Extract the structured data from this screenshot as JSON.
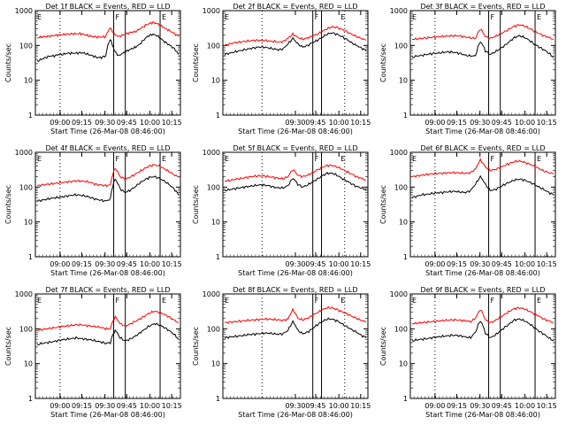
{
  "chart_data": [
    {
      "type": "line",
      "title": "Det 1f BLACK = Events, RED = LLD",
      "xlabel": "Start Time (26-Mar-08 08:46:00)",
      "ylabel": "Counts/sec",
      "xticks": [
        "09:00",
        "09:15",
        "09:30",
        "09:45",
        "10:00",
        "10:15"
      ],
      "yticks": [
        "1",
        "10",
        "100",
        "1000"
      ],
      "ylim": [
        1,
        1000
      ],
      "yscale": "log",
      "markers": [
        "F",
        "E"
      ],
      "series": [
        {
          "color": "#ff0000",
          "values": [
            165,
            175,
            180,
            185,
            195,
            200,
            205,
            210,
            215,
            215,
            220,
            205,
            190,
            180,
            175,
            175,
            180,
            320,
            210,
            180,
            200,
            220,
            240,
            250,
            300,
            360,
            420,
            460,
            420,
            360,
            300,
            260,
            220,
            180
          ]
        },
        {
          "color": "#000000",
          "values": [
            35,
            40,
            45,
            50,
            50,
            55,
            55,
            60,
            60,
            60,
            62,
            60,
            55,
            50,
            45,
            45,
            50,
            150,
            70,
            50,
            60,
            70,
            80,
            90,
            110,
            150,
            190,
            210,
            190,
            150,
            120,
            100,
            80,
            55
          ]
        }
      ]
    },
    {
      "type": "line",
      "title": "Det 2f BLACK = Events, RED = LLD",
      "xlabel": "Start Time (26-Mar-08 08:46:00)",
      "ylabel": "Counts/sec",
      "xticks": [
        "09:30",
        "09:45",
        "10:00",
        "10:15"
      ],
      "yticks": [
        "1",
        "10",
        "100",
        "1000"
      ],
      "ylim": [
        1,
        1000
      ],
      "yscale": "log",
      "markers": [
        "F",
        "E"
      ],
      "series": [
        {
          "color": "#ff0000",
          "values": [
            100,
            110,
            120,
            125,
            130,
            135,
            140,
            140,
            140,
            135,
            130,
            125,
            130,
            160,
            210,
            170,
            150,
            165,
            185,
            210,
            250,
            300,
            340,
            330,
            290,
            250,
            210,
            180,
            160,
            140
          ]
        },
        {
          "color": "#000000",
          "values": [
            55,
            60,
            65,
            70,
            75,
            80,
            85,
            90,
            90,
            85,
            80,
            75,
            80,
            110,
            160,
            110,
            90,
            100,
            120,
            140,
            170,
            210,
            230,
            210,
            180,
            150,
            120,
            100,
            85,
            70
          ]
        }
      ]
    },
    {
      "type": "line",
      "title": "Det 3f BLACK = Events, RED = LLD",
      "xlabel": "Start Time (26-Mar-08 08:46:00)",
      "ylabel": "Counts/sec",
      "xticks": [
        "09:00",
        "09:15",
        "09:30",
        "09:45",
        "10:00",
        "10:15"
      ],
      "yticks": [
        "1",
        "10",
        "100",
        "1000"
      ],
      "ylim": [
        1,
        1000
      ],
      "yscale": "log",
      "markers": [
        "F",
        "E"
      ],
      "series": [
        {
          "color": "#ff0000",
          "values": [
            150,
            155,
            160,
            165,
            170,
            175,
            180,
            185,
            190,
            190,
            185,
            175,
            165,
            160,
            300,
            180,
            160,
            180,
            210,
            250,
            300,
            360,
            390,
            360,
            310,
            260,
            220,
            190,
            170,
            150
          ]
        },
        {
          "color": "#000000",
          "values": [
            45,
            50,
            52,
            55,
            58,
            60,
            62,
            65,
            65,
            62,
            58,
            52,
            50,
            50,
            130,
            70,
            55,
            65,
            80,
            100,
            130,
            170,
            190,
            170,
            140,
            110,
            90,
            75,
            60,
            45
          ]
        }
      ]
    },
    {
      "type": "line",
      "title": "Det 4f BLACK = Events, RED = LLD",
      "xlabel": "Start Time (26-Mar-08 08:46:00)",
      "ylabel": "Counts/sec",
      "xticks": [
        "09:00",
        "09:15",
        "09:30",
        "09:45",
        "10:00",
        "10:15"
      ],
      "yticks": [
        "1",
        "10",
        "100",
        "1000"
      ],
      "ylim": [
        1,
        1000
      ],
      "yscale": "log",
      "markers": [
        "F",
        "E"
      ],
      "series": [
        {
          "color": "#ff0000",
          "values": [
            110,
            115,
            120,
            125,
            130,
            135,
            140,
            145,
            150,
            150,
            145,
            135,
            120,
            115,
            110,
            115,
            350,
            200,
            170,
            190,
            230,
            280,
            340,
            400,
            440,
            400,
            340,
            280,
            230,
            190
          ]
        },
        {
          "color": "#000000",
          "values": [
            40,
            42,
            45,
            48,
            50,
            52,
            55,
            58,
            60,
            58,
            55,
            50,
            45,
            42,
            40,
            45,
            170,
            90,
            70,
            80,
            100,
            130,
            160,
            190,
            200,
            180,
            150,
            120,
            90,
            60
          ]
        }
      ]
    },
    {
      "type": "line",
      "title": "Det 5f BLACK = Events, RED = LLD",
      "xlabel": "Start Time (26-Mar-08 08:46:00)",
      "ylabel": "Counts/sec",
      "xticks": [
        "09:30",
        "09:45",
        "10:00",
        "10:15"
      ],
      "yticks": [
        "1",
        "10",
        "100",
        "1000"
      ],
      "ylim": [
        1,
        1000
      ],
      "yscale": "log",
      "markers": [
        "F",
        "E"
      ],
      "series": [
        {
          "color": "#ff0000",
          "values": [
            150,
            155,
            165,
            175,
            185,
            195,
            205,
            210,
            210,
            200,
            190,
            180,
            175,
            200,
            320,
            220,
            200,
            220,
            260,
            310,
            370,
            420,
            420,
            380,
            330,
            280,
            240,
            200,
            180,
            160
          ]
        },
        {
          "color": "#000000",
          "values": [
            80,
            85,
            90,
            95,
            100,
            105,
            110,
            115,
            115,
            110,
            100,
            95,
            95,
            110,
            180,
            120,
            100,
            115,
            140,
            170,
            210,
            250,
            250,
            220,
            180,
            150,
            125,
            105,
            95,
            85
          ]
        }
      ]
    },
    {
      "type": "line",
      "title": "Det 6f BLACK = Events, RED = LLD",
      "xlabel": "Start Time (26-Mar-08 08:46:00)",
      "ylabel": "Counts/sec",
      "xticks": [
        "09:00",
        "09:15",
        "09:30",
        "09:45",
        "10:00",
        "10:15"
      ],
      "yticks": [
        "1",
        "10",
        "100",
        "1000"
      ],
      "ylim": [
        1,
        1000
      ],
      "yscale": "log",
      "markers": [
        "F",
        "E"
      ],
      "series": [
        {
          "color": "#ff0000",
          "values": [
            200,
            210,
            220,
            230,
            240,
            245,
            250,
            255,
            260,
            260,
            255,
            250,
            260,
            330,
            600,
            380,
            300,
            320,
            360,
            420,
            480,
            540,
            560,
            520,
            460,
            400,
            340,
            290,
            260,
            240
          ]
        },
        {
          "color": "#000000",
          "values": [
            50,
            55,
            60,
            62,
            65,
            68,
            70,
            72,
            75,
            75,
            72,
            70,
            80,
            120,
            200,
            120,
            80,
            85,
            100,
            120,
            140,
            160,
            170,
            160,
            140,
            120,
            100,
            85,
            70,
            60
          ]
        }
      ]
    },
    {
      "type": "line",
      "title": "Det 7f BLACK = Events, RED = LLD",
      "xlabel": "Start Time (26-Mar-08 08:46:00)",
      "ylabel": "Counts/sec",
      "xticks": [
        "09:00",
        "09:15",
        "09:30",
        "09:45",
        "10:00",
        "10:15"
      ],
      "yticks": [
        "1",
        "10",
        "100",
        "1000"
      ],
      "ylim": [
        1,
        1000
      ],
      "yscale": "log",
      "markers": [
        "F",
        "E"
      ],
      "series": [
        {
          "color": "#ff0000",
          "values": [
            90,
            95,
            100,
            105,
            110,
            115,
            120,
            125,
            130,
            130,
            125,
            120,
            115,
            110,
            100,
            100,
            220,
            140,
            120,
            135,
            160,
            190,
            230,
            280,
            320,
            300,
            260,
            220,
            180,
            150
          ]
        },
        {
          "color": "#000000",
          "values": [
            35,
            38,
            40,
            42,
            45,
            48,
            50,
            52,
            55,
            52,
            50,
            48,
            45,
            42,
            38,
            40,
            90,
            55,
            45,
            50,
            60,
            75,
            95,
            120,
            140,
            130,
            110,
            90,
            70,
            50
          ]
        }
      ]
    },
    {
      "type": "line",
      "title": "Det 8f BLACK = Events, RED = LLD",
      "xlabel": "Start Time (26-Mar-08 08:46:00)",
      "ylabel": "Counts/sec",
      "xticks": [
        "09:30",
        "09:45",
        "10:00",
        "10:15"
      ],
      "yticks": [
        "1",
        "10",
        "100",
        "1000"
      ],
      "ylim": [
        1,
        1000
      ],
      "yscale": "log",
      "markers": [
        "F",
        "E"
      ],
      "series": [
        {
          "color": "#ff0000",
          "values": [
            150,
            155,
            160,
            165,
            170,
            175,
            180,
            185,
            190,
            190,
            185,
            180,
            175,
            190,
            350,
            200,
            180,
            200,
            240,
            290,
            350,
            400,
            400,
            360,
            310,
            270,
            230,
            200,
            175,
            155
          ]
        },
        {
          "color": "#000000",
          "values": [
            55,
            58,
            60,
            62,
            65,
            68,
            70,
            72,
            75,
            75,
            72,
            70,
            72,
            90,
            160,
            90,
            72,
            80,
            100,
            130,
            160,
            190,
            190,
            170,
            140,
            115,
            95,
            80,
            65,
            55
          ]
        }
      ]
    },
    {
      "type": "line",
      "title": "Det 9f BLACK = Events, RED = LLD",
      "xlabel": "Start Time (26-Mar-08 08:46:00)",
      "ylabel": "Counts/sec",
      "xticks": [
        "09:00",
        "09:15",
        "09:30",
        "09:45",
        "10:00",
        "10:15"
      ],
      "yticks": [
        "1",
        "10",
        "100",
        "1000"
      ],
      "ylim": [
        1,
        1000
      ],
      "yscale": "log",
      "markers": [
        "F",
        "E"
      ],
      "series": [
        {
          "color": "#ff0000",
          "values": [
            140,
            145,
            150,
            155,
            160,
            165,
            170,
            175,
            180,
            180,
            175,
            170,
            160,
            200,
            360,
            180,
            150,
            170,
            210,
            260,
            320,
            380,
            400,
            370,
            320,
            270,
            230,
            190,
            170,
            150
          ]
        },
        {
          "color": "#000000",
          "values": [
            45,
            48,
            50,
            52,
            55,
            58,
            60,
            62,
            65,
            65,
            62,
            58,
            55,
            80,
            170,
            75,
            55,
            65,
            85,
            110,
            140,
            180,
            190,
            170,
            140,
            110,
            85,
            70,
            55,
            45
          ]
        }
      ]
    }
  ]
}
